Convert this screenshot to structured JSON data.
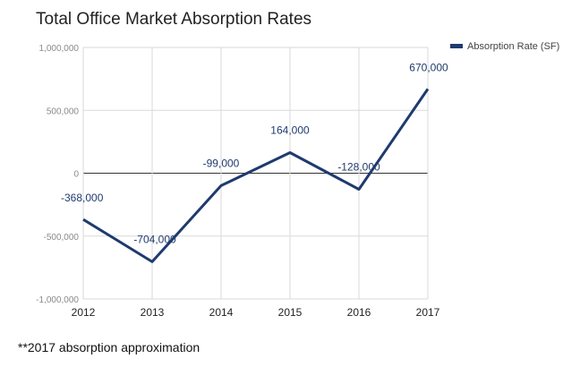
{
  "chart_data": {
    "type": "line",
    "title": "Total Office Market Absorption Rates",
    "categories": [
      "2012",
      "2013",
      "2014",
      "2015",
      "2016",
      "2017"
    ],
    "series": [
      {
        "name": "Absorption Rate (SF)",
        "values": [
          -368000,
          -704000,
          -99000,
          164000,
          -128000,
          670000
        ],
        "labels": [
          "-368,000",
          "-704,000",
          "-99,000",
          "164,000",
          "-128,000",
          "670,000"
        ],
        "color": "#1f3a6e"
      }
    ],
    "yticks": [
      1000000,
      500000,
      0,
      -500000,
      -1000000
    ],
    "ytick_labels": [
      "1,000,000",
      "500,000",
      "0",
      "-500,000",
      "-1,000,000"
    ],
    "ylim": [
      -1000000,
      1000000
    ],
    "xlabel": "",
    "ylabel": "",
    "legend_position": "top-right"
  },
  "footnote": "**2017 absorption approximation"
}
